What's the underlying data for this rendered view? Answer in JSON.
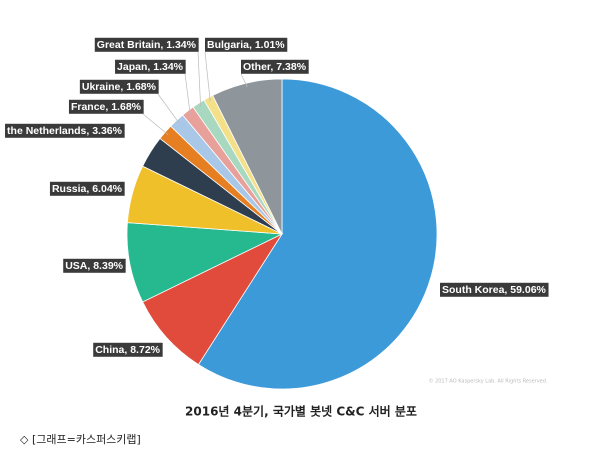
{
  "chart_data": {
    "type": "pie",
    "title": "2016년 4분기, 국가별 봇넷 C&C 서버 분포",
    "caption": "◇ [그래프=카스퍼스키랩]",
    "watermark": "© 2017 AO Kaspersky Lab. All Rights Reserved.",
    "values": [
      59.06,
      8.72,
      8.39,
      6.04,
      3.36,
      1.68,
      1.68,
      1.34,
      1.34,
      1.01,
      7.38
    ],
    "value_labels": [
      "South Korea, 59.06%",
      "China, 8.72%",
      "USA, 8.39%",
      "Russia, 6.04%",
      "the Netherlands, 3.36%",
      "France, 1.68%",
      "Ukraine, 1.68%",
      "Japan, 1.34%",
      "Great Britain, 1.34%",
      "Bulgaria, 1.01%",
      "Other, 7.38%"
    ],
    "colors": [
      "#3d9ad9",
      "#e14b3b",
      "#26b88f",
      "#f0c02a",
      "#2f3e4e",
      "#e67e22",
      "#a9c8e8",
      "#e8a09a",
      "#a8d8c0",
      "#f5e08a",
      "#8e969c"
    ]
  }
}
